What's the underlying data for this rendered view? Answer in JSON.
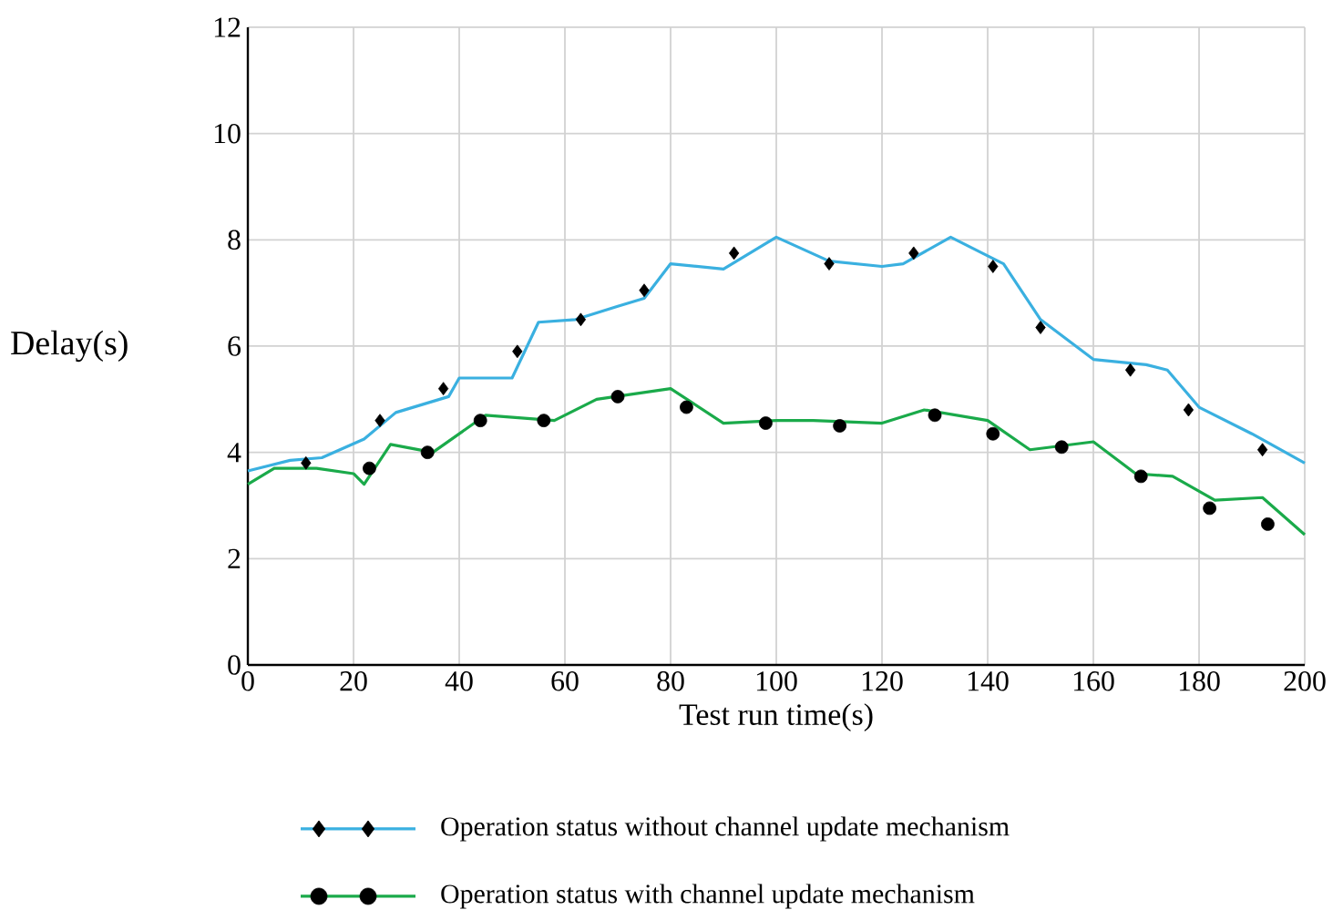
{
  "chart_data": {
    "type": "line",
    "xlabel": "Test run time(s)",
    "ylabel": "Delay(s)",
    "xlim": [
      0,
      200
    ],
    "ylim": [
      0,
      12
    ],
    "xticks": [
      0,
      20,
      40,
      60,
      80,
      100,
      120,
      140,
      160,
      180,
      200
    ],
    "yticks": [
      0,
      2,
      4,
      6,
      8,
      10,
      12
    ],
    "grid": true,
    "legend": "bottom",
    "series": [
      {
        "name": "Operation status without channel update mechanism",
        "color": "#3ab0e0",
        "x": [
          0,
          8,
          14,
          22,
          28,
          38,
          40,
          50,
          55,
          62,
          70,
          75,
          80,
          90,
          100,
          110,
          120,
          124,
          133,
          140,
          143,
          150,
          160,
          170,
          174,
          180,
          190,
          200
        ],
        "values": [
          3.65,
          3.85,
          3.9,
          4.25,
          4.75,
          5.05,
          5.4,
          5.4,
          6.45,
          6.5,
          6.75,
          6.9,
          7.55,
          7.45,
          8.05,
          7.6,
          7.5,
          7.55,
          8.05,
          7.7,
          7.55,
          6.5,
          5.75,
          5.65,
          5.55,
          4.85,
          4.35,
          3.8
        ]
      },
      {
        "type": "scatter",
        "marker": "diamond",
        "color": "#000000",
        "x": [
          11,
          25,
          37,
          51,
          63,
          75,
          92,
          110,
          126,
          141,
          150,
          167,
          178,
          192
        ],
        "values": [
          3.8,
          4.6,
          5.2,
          5.9,
          6.5,
          7.05,
          7.75,
          7.55,
          7.75,
          7.5,
          6.35,
          5.55,
          4.8,
          4.05
        ]
      },
      {
        "name": "Operation status with channel update mechanism",
        "color": "#1aaa4a",
        "x": [
          0,
          5,
          13,
          20,
          22,
          27,
          35,
          45,
          58,
          66,
          80,
          90,
          100,
          107,
          120,
          128,
          140,
          148,
          160,
          168,
          175,
          183,
          192,
          200
        ],
        "values": [
          3.4,
          3.7,
          3.7,
          3.6,
          3.4,
          4.15,
          4.0,
          4.7,
          4.6,
          5.0,
          5.2,
          4.55,
          4.6,
          4.6,
          4.55,
          4.8,
          4.6,
          4.05,
          4.2,
          3.6,
          3.55,
          3.1,
          3.15,
          2.45
        ]
      },
      {
        "type": "scatter",
        "marker": "circle",
        "color": "#000000",
        "x": [
          23,
          34,
          44,
          56,
          70,
          83,
          98,
          112,
          130,
          141,
          154,
          169,
          182,
          193
        ],
        "values": [
          3.7,
          4.0,
          4.6,
          4.6,
          5.05,
          4.85,
          4.55,
          4.5,
          4.7,
          4.35,
          4.1,
          3.55,
          2.95,
          2.65
        ]
      }
    ]
  }
}
